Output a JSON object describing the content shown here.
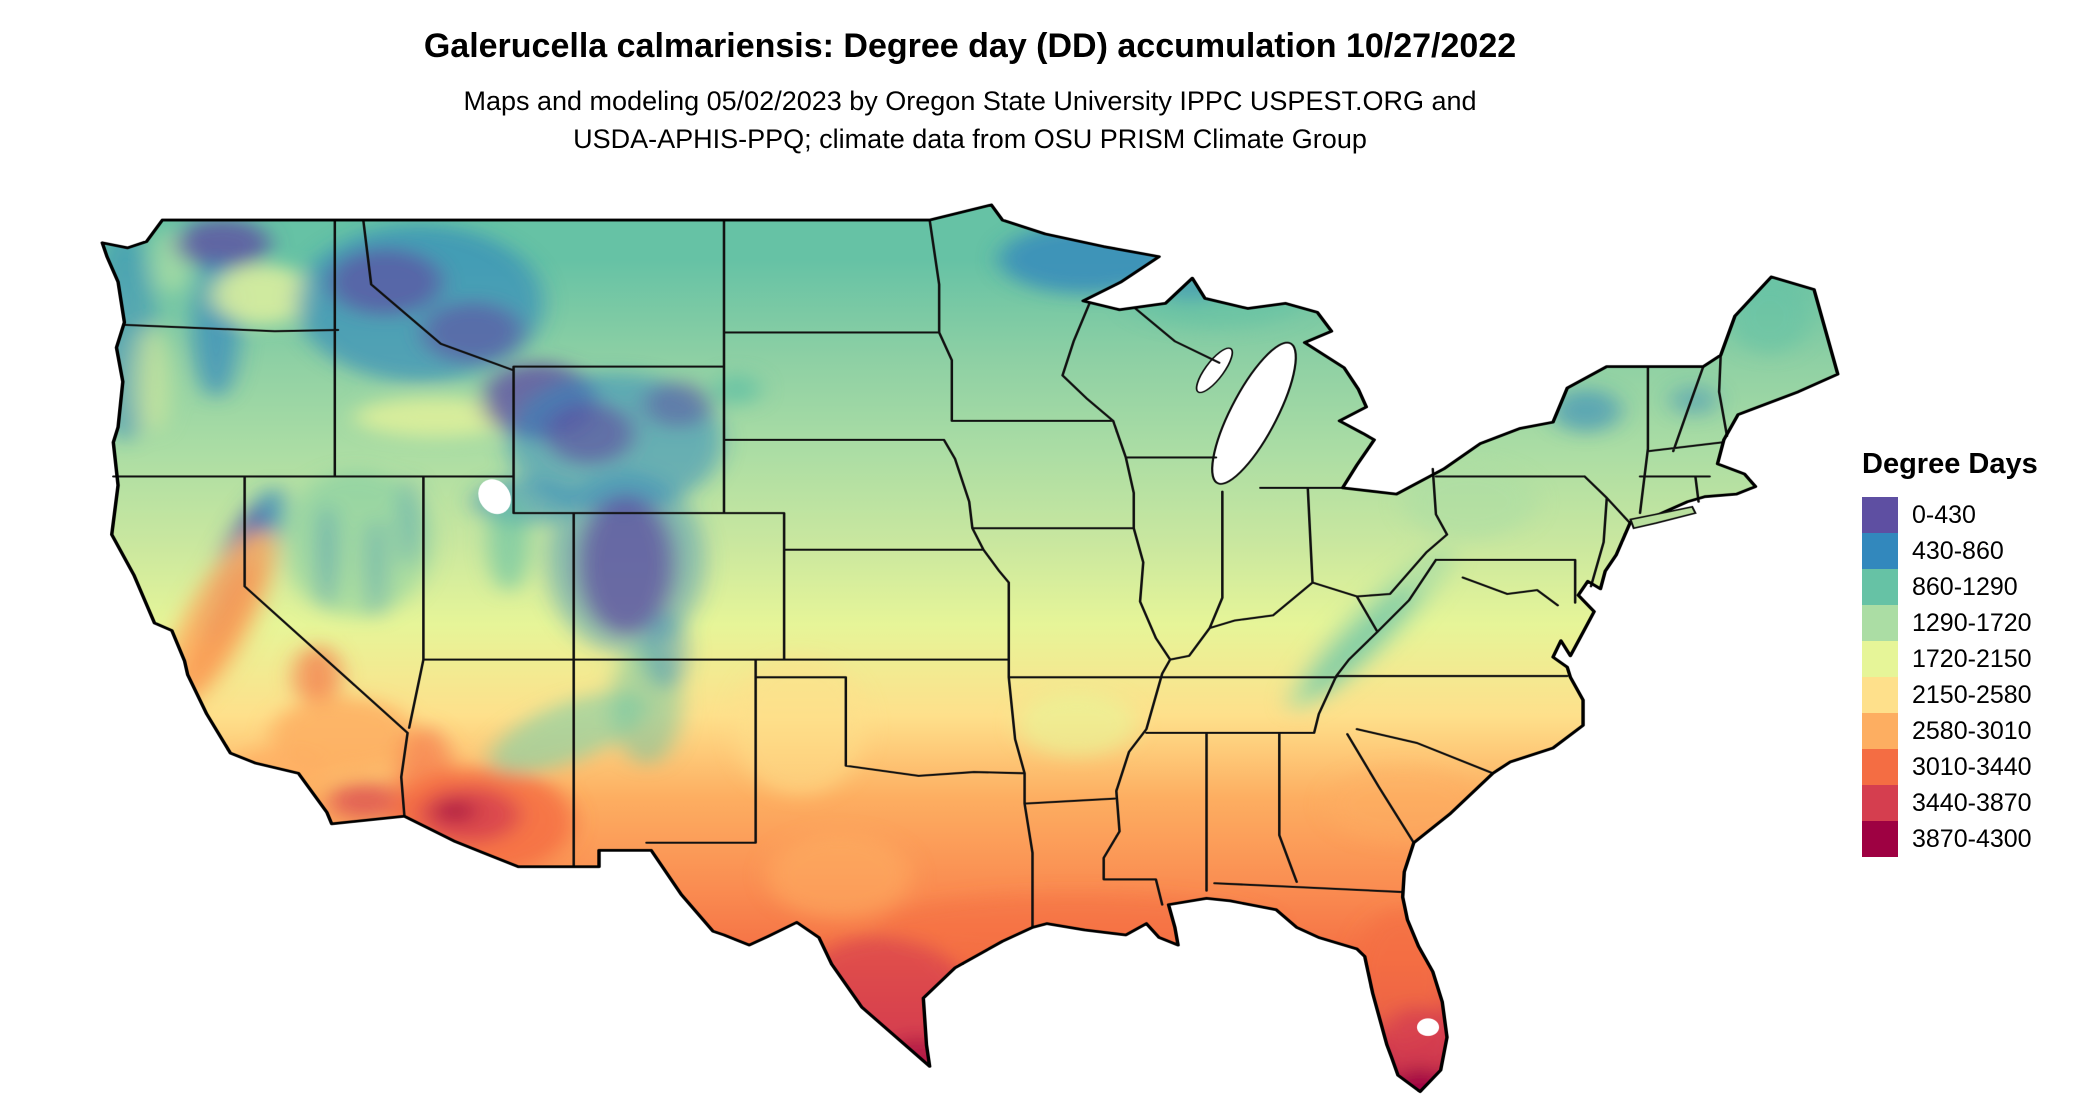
{
  "header": {
    "title": "Galerucella calmariensis: Degree day (DD) accumulation 10/27/2022",
    "subtitle_line1": "Maps and modeling 05/02/2023 by Oregon State University IPPC USPEST.ORG and",
    "subtitle_line2": "USDA-APHIS-PPQ; climate data from OSU PRISM Climate Group"
  },
  "legend": {
    "title": "Degree Days",
    "entries": [
      {
        "label": "0-430",
        "color": "#5e4fa2"
      },
      {
        "label": "430-860",
        "color": "#3288bd"
      },
      {
        "label": "860-1290",
        "color": "#66c2a5"
      },
      {
        "label": "1290-1720",
        "color": "#abdda4"
      },
      {
        "label": "1720-2150",
        "color": "#e6f598"
      },
      {
        "label": "2150-2580",
        "color": "#fee08b"
      },
      {
        "label": "2580-3010",
        "color": "#fdae61"
      },
      {
        "label": "3010-3440",
        "color": "#f46d43"
      },
      {
        "label": "3440-3870",
        "color": "#d53e4f"
      },
      {
        "label": "3870-4300",
        "color": "#9e0142"
      }
    ]
  }
}
